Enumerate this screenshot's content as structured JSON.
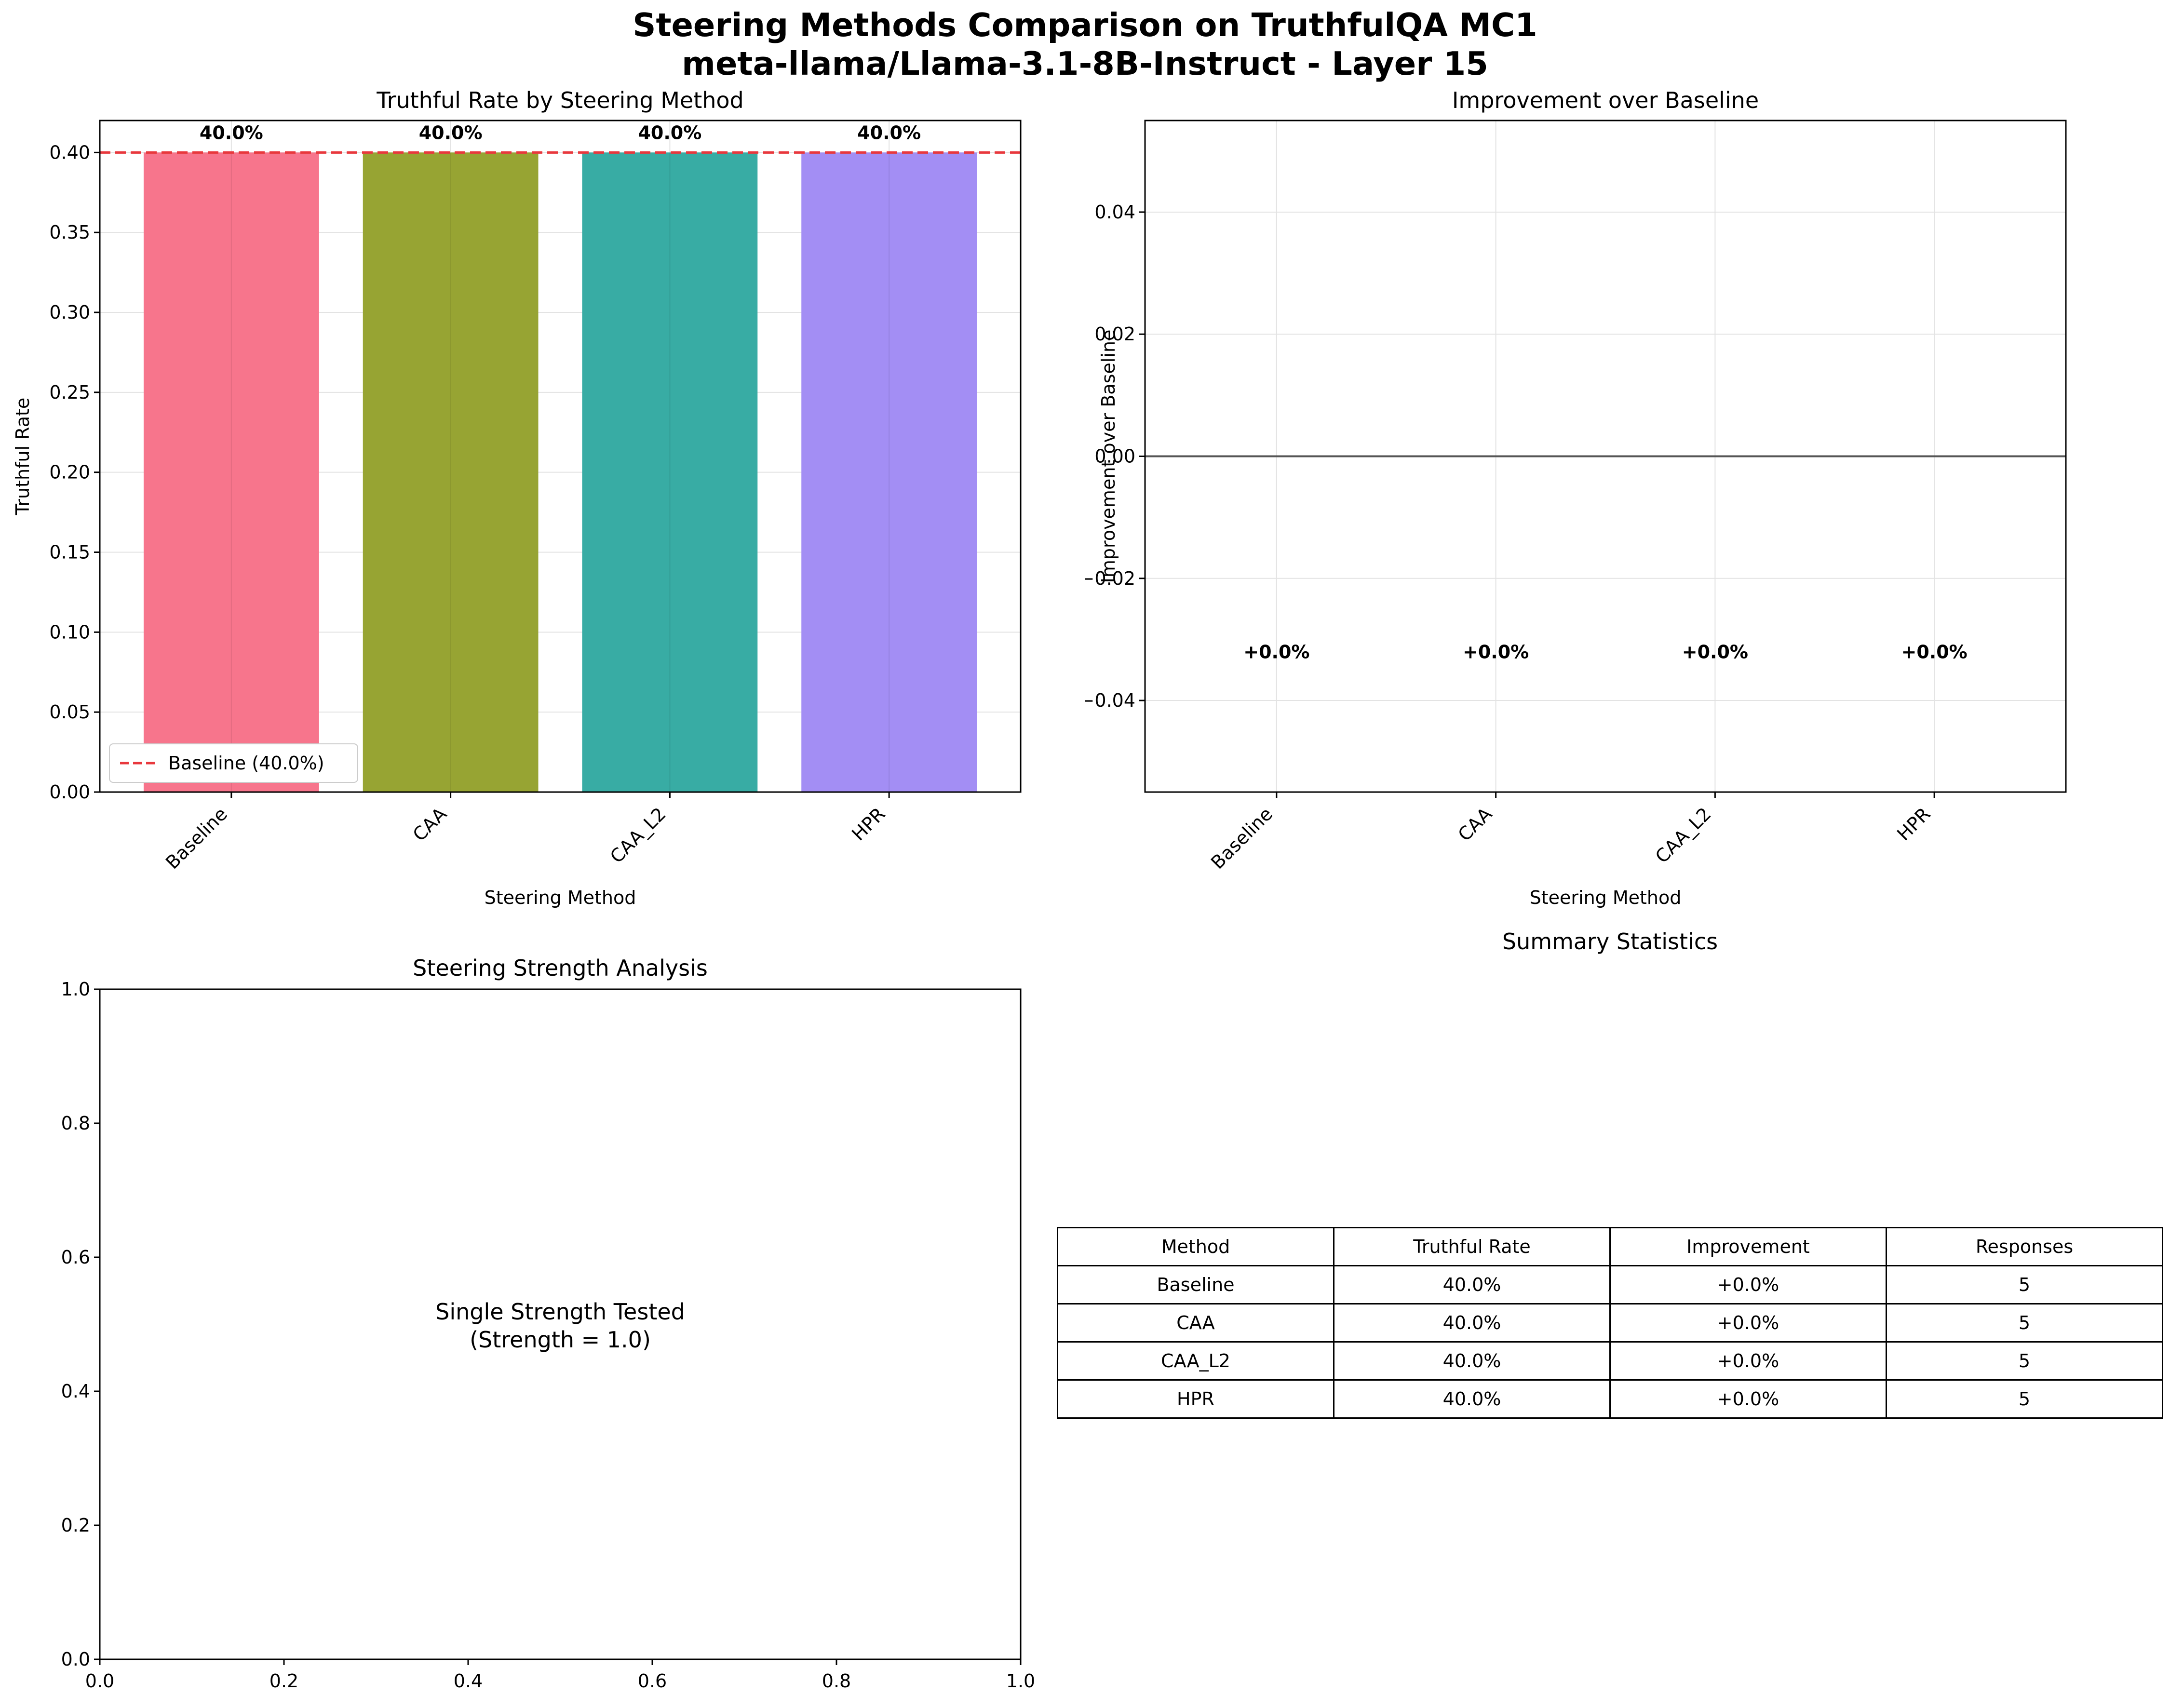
{
  "figure": {
    "title_line1": "Steering Methods Comparison on TruthfulQA MC1",
    "title_line2": "meta-llama/Llama-3.1-8B-Instruct - Layer 15"
  },
  "chart_data": [
    {
      "type": "bar",
      "title": "Truthful Rate by Steering Method",
      "xlabel": "Steering Method",
      "ylabel": "Truthful Rate",
      "categories": [
        "Baseline",
        "CAA",
        "CAA_L2",
        "HPR"
      ],
      "values": [
        0.4,
        0.4,
        0.4,
        0.4
      ],
      "value_labels": [
        "40.0%",
        "40.0%",
        "40.0%",
        "40.0%"
      ],
      "colors": [
        "#f7758c",
        "#97a433",
        "#38aca4",
        "#a38ef4"
      ],
      "ylim": [
        0,
        0.42
      ],
      "yticks": [
        0.0,
        0.05,
        0.1,
        0.15,
        0.2,
        0.25,
        0.3,
        0.35,
        0.4
      ],
      "ytick_labels": [
        "0.00",
        "0.05",
        "0.10",
        "0.15",
        "0.20",
        "0.25",
        "0.30",
        "0.35",
        "0.40"
      ],
      "baseline_line": {
        "value": 0.4,
        "label": "Baseline (40.0%)",
        "color": "#e8383d"
      },
      "grid": true,
      "legend": "lower-left"
    },
    {
      "type": "bar",
      "title": "Improvement over Baseline",
      "xlabel": "Steering Method",
      "ylabel": "Improvement over Baseline",
      "categories": [
        "Baseline",
        "CAA",
        "CAA_L2",
        "HPR"
      ],
      "values": [
        0.0,
        0.0,
        0.0,
        0.0
      ],
      "value_labels": [
        "+0.0%",
        "+0.0%",
        "+0.0%",
        "+0.0%"
      ],
      "ylim": [
        -0.055,
        0.055
      ],
      "yticks": [
        -0.04,
        -0.02,
        0.0,
        0.02,
        0.04
      ],
      "ytick_labels": [
        "−0.04",
        "−0.02",
        "0.00",
        "0.02",
        "0.04"
      ],
      "zero_line_color": "#555555",
      "grid": true
    },
    {
      "type": "line",
      "title": "Steering Strength Analysis",
      "annotation_line1": "Single Strength Tested",
      "annotation_line2": "(Strength = 1.0)",
      "xlim": [
        0,
        1
      ],
      "ylim": [
        0,
        1
      ],
      "xticks": [
        0,
        0.2,
        0.4,
        0.6,
        0.8,
        1.0
      ],
      "xtick_labels": [
        "0.0",
        "0.2",
        "0.4",
        "0.6",
        "0.8",
        "1.0"
      ],
      "yticks": [
        0,
        0.2,
        0.4,
        0.6,
        0.8,
        1.0
      ],
      "ytick_labels": [
        "0.0",
        "0.2",
        "0.4",
        "0.6",
        "0.8",
        "1.0"
      ]
    },
    {
      "type": "table",
      "title": "Summary Statistics",
      "columns": [
        "Method",
        "Truthful Rate",
        "Improvement",
        "Responses"
      ],
      "rows": [
        [
          "Baseline",
          "40.0%",
          "+0.0%",
          "5"
        ],
        [
          "CAA",
          "40.0%",
          "+0.0%",
          "5"
        ],
        [
          "CAA_L2",
          "40.0%",
          "+0.0%",
          "5"
        ],
        [
          "HPR",
          "40.0%",
          "+0.0%",
          "5"
        ]
      ]
    }
  ]
}
